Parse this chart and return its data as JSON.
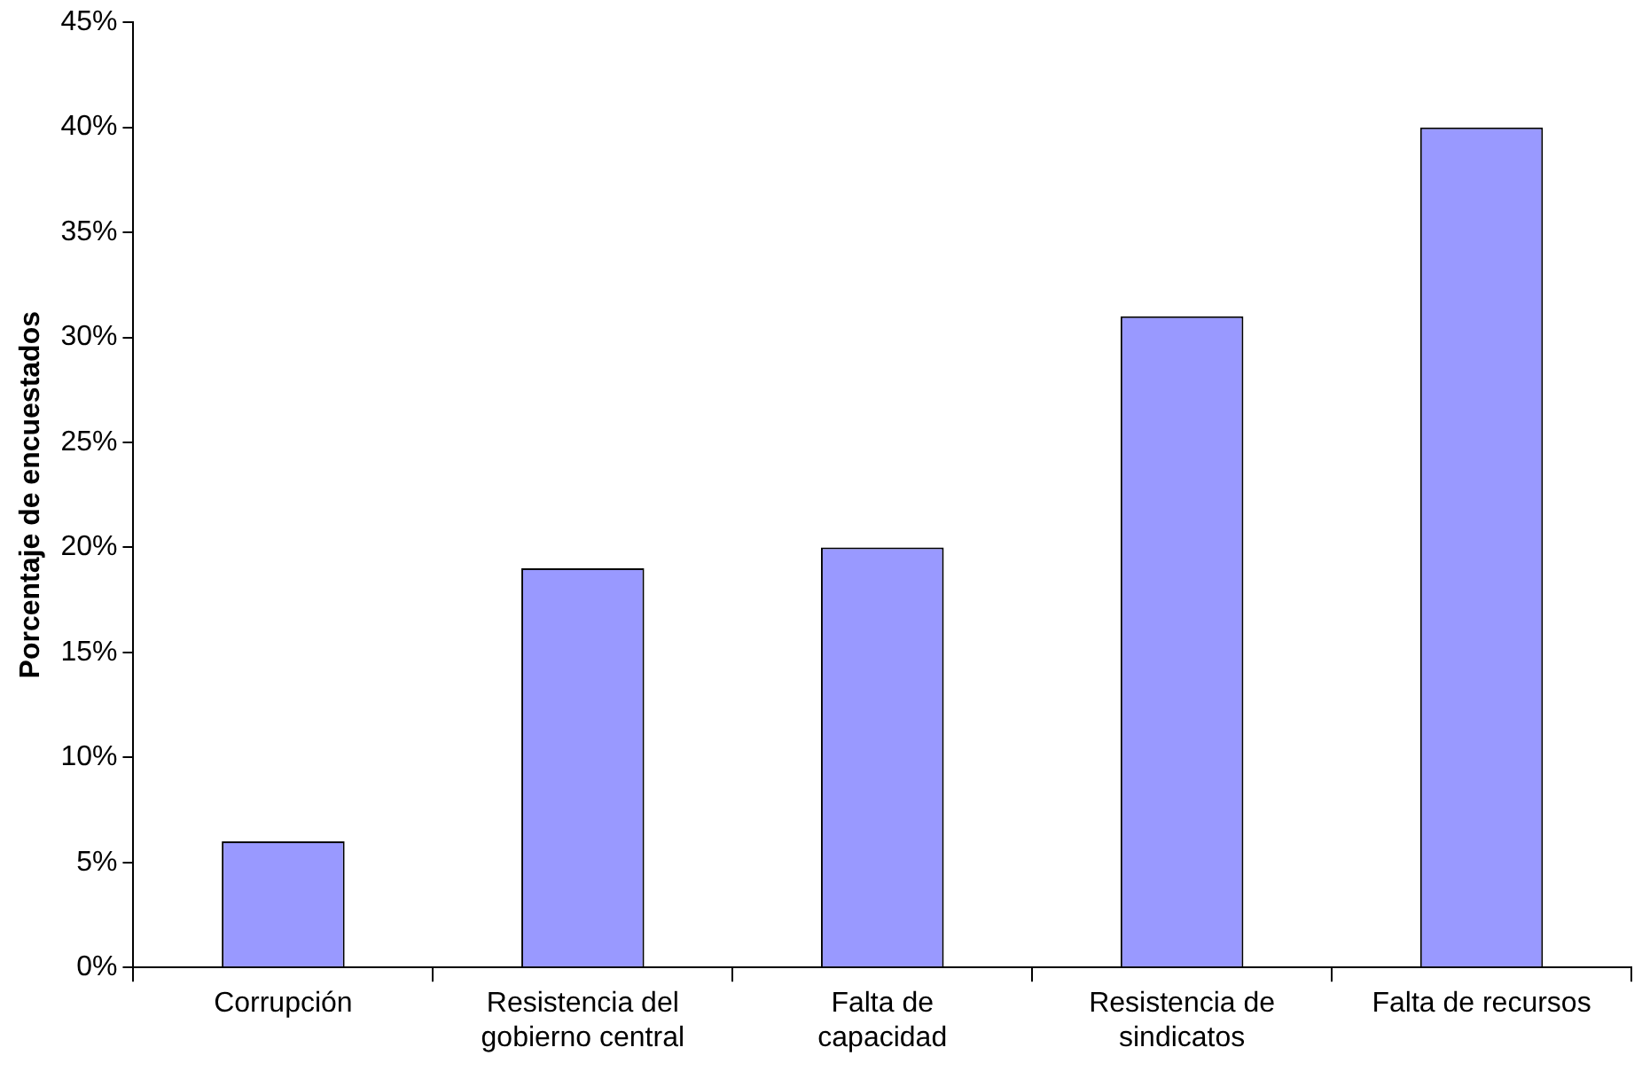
{
  "chart_data": {
    "type": "bar",
    "ylabel": "Porcentaje de encuestados",
    "categories": [
      "Corrupción",
      "Resistencia del\ngobierno central",
      "Falta de\ncapacidad",
      "Resistencia de\nsindicatos",
      "Falta de recursos"
    ],
    "values": [
      6,
      19,
      20,
      31,
      40
    ],
    "color": "#9999ff",
    "ylim": [
      0,
      45
    ],
    "yticks": [
      {
        "value": 0,
        "label": "0%"
      },
      {
        "value": 5,
        "label": "5%"
      },
      {
        "value": 10,
        "label": "10%"
      },
      {
        "value": 15,
        "label": "15%"
      },
      {
        "value": 20,
        "label": "20%"
      },
      {
        "value": 25,
        "label": "25%"
      },
      {
        "value": 30,
        "label": "30%"
      },
      {
        "value": 35,
        "label": "35%"
      },
      {
        "value": 40,
        "label": "40%"
      },
      {
        "value": 45,
        "label": "45%"
      }
    ],
    "grid": false,
    "legend": false
  }
}
